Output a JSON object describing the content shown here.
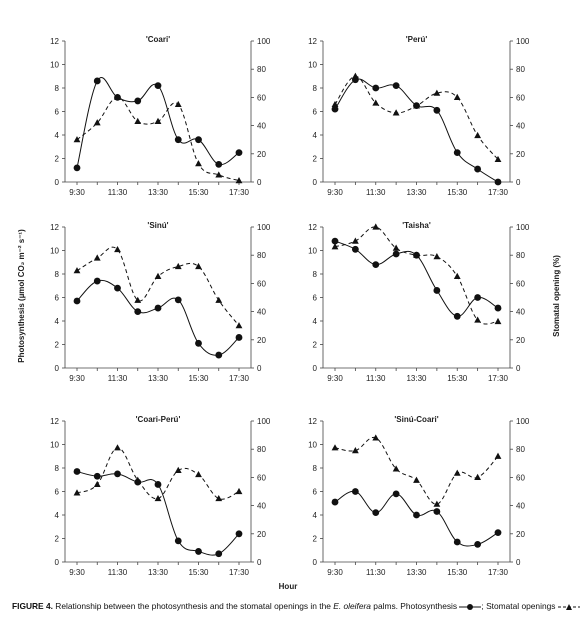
{
  "figure": {
    "x_label": "Hour",
    "y_left_label": "Photosynthesis (µmol CO₂ m⁻² s⁻¹)",
    "y_right_label": "Stomatal opening (%)",
    "caption": {
      "label": "FIGURE 4.",
      "text_before": " Relationship between the photosynthesis and the stomatal openings in the ",
      "species": "E. oleifera",
      "text_after": " palms. Photosynthesis ",
      "sep": "; Stomatal openings ",
      "end": "."
    }
  },
  "chart_data": [
    {
      "type": "line",
      "title": "'Coari'",
      "x": [
        "9:30",
        "10:30",
        "11:30",
        "12:30",
        "13:30",
        "14:30",
        "15:30",
        "16:30",
        "17:30"
      ],
      "x_tick_labels": [
        "9:30",
        "11:30",
        "13:30",
        "15:30",
        "17:30"
      ],
      "ylim_left": [
        0,
        12
      ],
      "ylim_right": [
        0,
        100
      ],
      "series": [
        {
          "axis": "left",
          "style": "solid-circle",
          "values": [
            1.2,
            8.6,
            7.2,
            6.9,
            8.2,
            3.6,
            3.6,
            1.5,
            2.5
          ]
        },
        {
          "axis": "right",
          "style": "dashed-triangle",
          "values": [
            30,
            42,
            60,
            43,
            43,
            55,
            13,
            5,
            1
          ]
        }
      ]
    },
    {
      "type": "line",
      "title": "'Perú'",
      "x": [
        "9:30",
        "10:30",
        "11:30",
        "12:30",
        "13:30",
        "14:30",
        "15:30",
        "16:30",
        "17:30"
      ],
      "x_tick_labels": [
        "9:30",
        "11:30",
        "13:30",
        "15:30",
        "17:30"
      ],
      "ylim_left": [
        0,
        12
      ],
      "ylim_right": [
        0,
        100
      ],
      "series": [
        {
          "axis": "left",
          "style": "solid-circle",
          "values": [
            6.2,
            8.7,
            8.0,
            8.2,
            6.5,
            6.1,
            2.5,
            1.1,
            0
          ]
        },
        {
          "axis": "right",
          "style": "dashed-triangle",
          "values": [
            55,
            75,
            56,
            49,
            54,
            63,
            60,
            33,
            16
          ]
        }
      ]
    },
    {
      "type": "line",
      "title": "'Sinú'",
      "x": [
        "9:30",
        "10:30",
        "11:30",
        "12:30",
        "13:30",
        "14:30",
        "15:30",
        "16:30",
        "17:30"
      ],
      "x_tick_labels": [
        "9:30",
        "11:30",
        "13:30",
        "15:30",
        "17:30"
      ],
      "ylim_left": [
        0,
        12
      ],
      "ylim_right": [
        0,
        100
      ],
      "series": [
        {
          "axis": "left",
          "style": "solid-circle",
          "values": [
            5.7,
            7.4,
            6.8,
            4.8,
            5.1,
            5.8,
            2.1,
            1.1,
            2.6
          ]
        },
        {
          "axis": "right",
          "style": "dashed-triangle",
          "values": [
            69,
            78,
            84,
            48,
            65,
            72,
            72,
            48,
            30
          ]
        }
      ]
    },
    {
      "type": "line",
      "title": "'Taisha'",
      "x": [
        "9:30",
        "10:30",
        "11:30",
        "12:30",
        "13:30",
        "14:30",
        "15:30",
        "16:30",
        "17:30"
      ],
      "x_tick_labels": [
        "9:30",
        "11:30",
        "13:30",
        "15:30",
        "17:30"
      ],
      "ylim_left": [
        0,
        12
      ],
      "ylim_right": [
        0,
        100
      ],
      "series": [
        {
          "axis": "left",
          "style": "solid-circle",
          "values": [
            10.8,
            10.1,
            8.8,
            9.7,
            9.6,
            6.6,
            4.4,
            6.0,
            5.1
          ]
        },
        {
          "axis": "right",
          "style": "dashed-triangle",
          "values": [
            86,
            90,
            100,
            85,
            80,
            79,
            65,
            34,
            33
          ]
        }
      ]
    },
    {
      "type": "line",
      "title": "'Coari-Perú'",
      "x": [
        "9:30",
        "10:30",
        "11:30",
        "12:30",
        "13:30",
        "14:30",
        "15:30",
        "16:30",
        "17:30"
      ],
      "x_tick_labels": [
        "9:30",
        "11:30",
        "13:30",
        "15:30",
        "17:30"
      ],
      "ylim_left": [
        0,
        12
      ],
      "ylim_right": [
        0,
        100
      ],
      "series": [
        {
          "axis": "left",
          "style": "solid-circle",
          "values": [
            7.7,
            7.3,
            7.5,
            6.8,
            6.6,
            1.8,
            0.9,
            0.7,
            2.4
          ]
        },
        {
          "axis": "right",
          "style": "dashed-triangle",
          "values": [
            49,
            55,
            81,
            58,
            45,
            65,
            62,
            45,
            50
          ]
        }
      ]
    },
    {
      "type": "line",
      "title": "'Sinú-Coari'",
      "x": [
        "9:30",
        "10:30",
        "11:30",
        "12:30",
        "13:30",
        "14:30",
        "15:30",
        "16:30",
        "17:30"
      ],
      "x_tick_labels": [
        "9:30",
        "11:30",
        "13:30",
        "15:30",
        "17:30"
      ],
      "ylim_left": [
        0,
        12
      ],
      "ylim_right": [
        0,
        100
      ],
      "series": [
        {
          "axis": "left",
          "style": "solid-circle",
          "values": [
            5.1,
            6.0,
            4.2,
            5.8,
            4.0,
            4.3,
            1.7,
            1.5,
            2.5
          ]
        },
        {
          "axis": "right",
          "style": "dashed-triangle",
          "values": [
            81,
            79,
            88,
            66,
            58,
            41,
            63,
            60,
            75
          ]
        }
      ]
    }
  ]
}
